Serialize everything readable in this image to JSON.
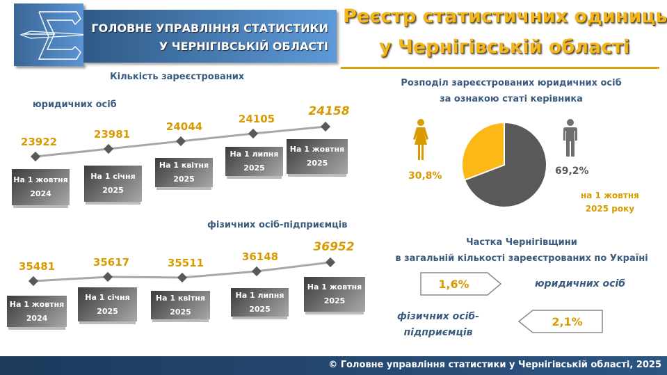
{
  "header": {
    "org_line1": "ГОЛОВНЕ УПРАВЛІННЯ СТАТИСТИКИ",
    "org_line2": "У ЧЕРНІГІВСЬКІЙ ОБЛАСТІ",
    "title_line1": "Реєстр статистичних одиниць",
    "title_line2": "у Чернігівській області"
  },
  "legal": {
    "title_line1": "Кількість зареєстрованих",
    "title_line2": "юридичних осіб"
  },
  "individual": {
    "title": "фізичних осіб-підприємців"
  },
  "chart_data": [
    {
      "type": "line",
      "title": "Кількість зареєстрованих юридичних осіб",
      "categories": [
        [
          "На 1 жовтня",
          "2024"
        ],
        [
          "На 1 січня",
          "2025"
        ],
        [
          "На 1 квітня",
          "2025"
        ],
        [
          "На 1 липня",
          "2025"
        ],
        [
          "На 1 жовтня",
          "2025"
        ]
      ],
      "values": [
        23922,
        23981,
        24044,
        24105,
        24158
      ],
      "labels": [
        "23922",
        "23981",
        "24044",
        "24105",
        "24158"
      ]
    },
    {
      "type": "line",
      "title": "фізичних осіб-підприємців",
      "categories": [
        [
          "На 1 жовтня",
          "2024"
        ],
        [
          "На 1 січня",
          "2025"
        ],
        [
          "На 1 квітня",
          "2025"
        ],
        [
          "На 1 липня",
          "2025"
        ],
        [
          "На 1 жовтня",
          "2025"
        ]
      ],
      "values": [
        35481,
        35617,
        35511,
        36148,
        36952
      ],
      "labels": [
        "35481",
        "35617",
        "35511",
        "36148",
        "36952"
      ]
    },
    {
      "type": "pie",
      "title": "Розподіл зареєстрованих юридичних осіб за ознакою статі керівника",
      "slices": [
        {
          "name": "female",
          "value": 30.8,
          "label": "30,8%",
          "color": "#fbb817"
        },
        {
          "name": "male",
          "value": 69.2,
          "label": "69,2%",
          "color": "#595959"
        }
      ],
      "note_line1": "на 1 жовтня",
      "note_line2": "2025 року"
    }
  ],
  "gender": {
    "title_line1": "Розподіл зареєстрованих юридичних осіб",
    "title_line2": "за ознакою статі керівника"
  },
  "share": {
    "title_line1": "Частка Чернігівщини",
    "title_line2": "в загальній кількості зареєстрованих по Україні",
    "legal_value": "1,6%",
    "legal_label": "юридичних осіб",
    "ind_value": "2,1%",
    "ind_label_line1": "фізичних осіб-",
    "ind_label_line2": "підприємців"
  },
  "footer": {
    "text": "© Головне управління статистики у Чернігівській області, 2025"
  }
}
